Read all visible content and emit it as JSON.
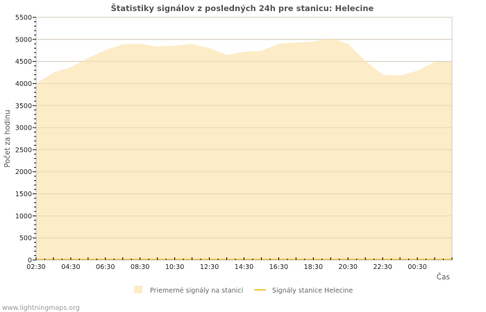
{
  "chart_data": {
    "type": "area",
    "title": "Štatistiky signálov z posledných 24h pre stanicu: Helecine",
    "xlabel": "Čas",
    "ylabel": "Počet za hodinu",
    "ylim": [
      0,
      5500
    ],
    "yticks": [
      "0",
      "500",
      "1000",
      "1500",
      "2000",
      "2500",
      "3000",
      "3500",
      "4000",
      "4500",
      "5000",
      "5500"
    ],
    "xtick_labels": [
      "02:30",
      "04:30",
      "06:30",
      "08:30",
      "10:30",
      "12:30",
      "14:30",
      "16:30",
      "18:30",
      "20:30",
      "22:30",
      "00:30"
    ],
    "x": [
      "02:30",
      "03:30",
      "04:30",
      "05:30",
      "06:30",
      "07:30",
      "08:30",
      "09:30",
      "10:30",
      "11:30",
      "12:30",
      "13:30",
      "14:30",
      "15:30",
      "16:30",
      "17:30",
      "18:30",
      "19:30",
      "20:30",
      "21:30",
      "22:30",
      "23:30",
      "00:30",
      "01:30",
      "02:30"
    ],
    "series": [
      {
        "name": "Priemerné signály na stanici",
        "color": "#fdecc8",
        "values": [
          4000,
          4250,
          4370,
          4580,
          4760,
          4890,
          4900,
          4840,
          4860,
          4900,
          4800,
          4650,
          4720,
          4740,
          4900,
          4930,
          4950,
          5030,
          4900,
          4510,
          4200,
          4180,
          4290,
          4490,
          4500
        ]
      },
      {
        "name": "Signály stanice Helecine",
        "color": "#f5c842",
        "values": [
          0,
          0,
          0,
          0,
          0,
          0,
          0,
          0,
          0,
          0,
          0,
          0,
          0,
          0,
          0,
          0,
          0,
          0,
          0,
          0,
          0,
          0,
          0,
          0,
          0
        ]
      }
    ],
    "grid": true,
    "legend": "bottom"
  },
  "credit": "www.lightningmaps.org"
}
